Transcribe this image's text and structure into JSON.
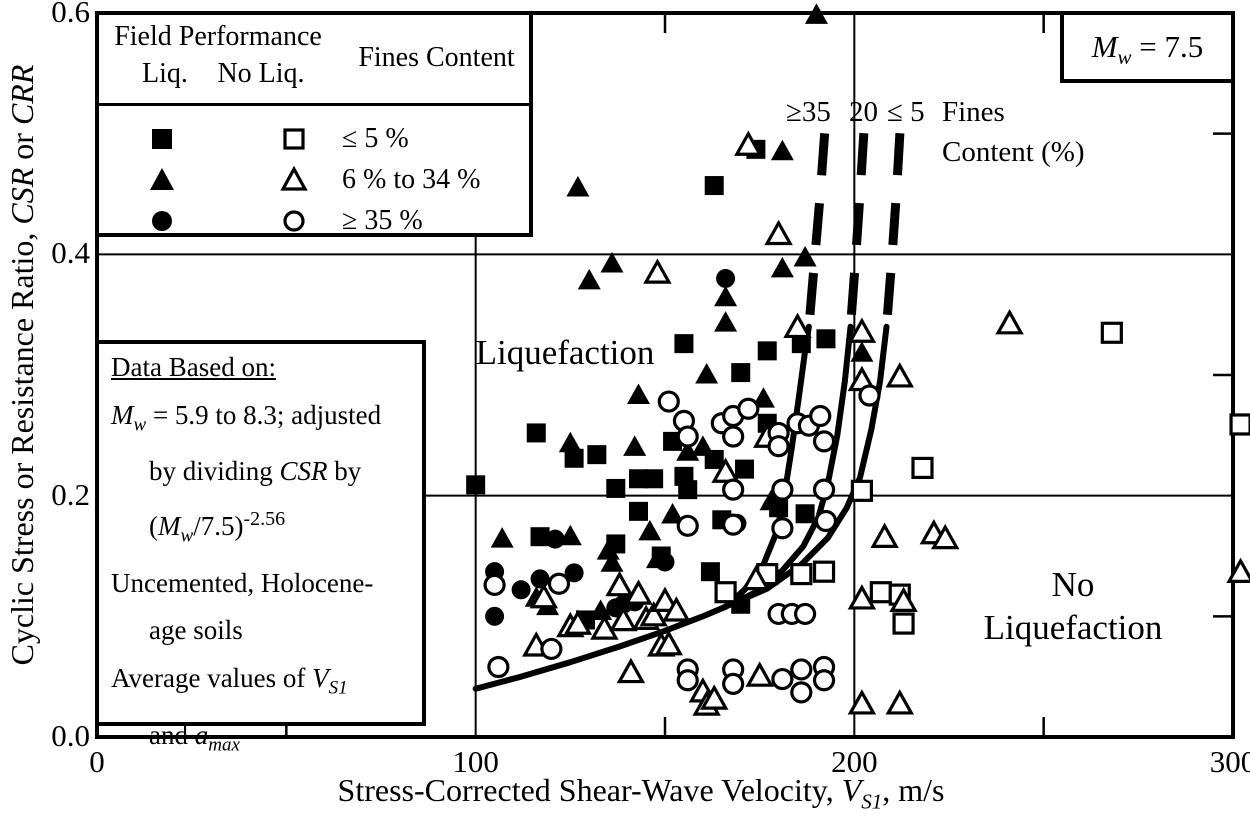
{
  "legend": {
    "header": {
      "field_performance": "Field Performance",
      "liq": "Liq.",
      "no_liq": "No Liq.",
      "fines_content": "Fines Content"
    },
    "rows": [
      {
        "liq_icon": "filled-square-icon",
        "no_liq_icon": "open-square-icon",
        "fines": "≤ 5 %"
      },
      {
        "liq_icon": "filled-triangle-icon",
        "no_liq_icon": "open-triangle-icon",
        "fines": "6 % to 34 %"
      },
      {
        "liq_icon": "filled-circle-icon",
        "no_liq_icon": "open-circle-icon",
        "fines": "≥ 35 %"
      }
    ]
  },
  "data_box": {
    "title": "Data Based on:",
    "line2": {
      "m": "M",
      "w": "w",
      "rest": " = 5.9 to 8.3; adjusted"
    },
    "line3": {
      "pre": "by dividing ",
      "csr": "CSR",
      "post": " by"
    },
    "line4": {
      "p1": "(",
      "m": "M",
      "w": "w",
      "p2": "/7.5)",
      "exp": "-2.56"
    },
    "line5": "Uncemented, Holocene-",
    "line6": "age soils",
    "line7": {
      "pre": "Average values of ",
      "v": "V",
      "sub": "S1"
    },
    "line8": {
      "pre": "and ",
      "a": "a",
      "sub": "max"
    }
  },
  "mw_box": {
    "m": "M",
    "w": "w",
    "rest": " = 7.5"
  },
  "region_labels": {
    "liquefaction": "Liquefaction",
    "no_line1": "No",
    "no_line2": "Liquefaction"
  },
  "curve_labels": {
    "ge35": "≥35",
    "c20": "20",
    "le5": "≤ 5",
    "fines_line1": "Fines",
    "fines_line2": "Content (%)"
  },
  "axes": {
    "x": {
      "title_prefix": "Stress-Corrected Shear-Wave Velocity, ",
      "title_var": "V",
      "title_sub": "S1",
      "title_suffix": ", m/s",
      "tick_values": [
        0,
        100,
        200,
        300
      ],
      "tick_labels": [
        "0",
        "100",
        "200",
        "300"
      ],
      "minor_ticks": [
        50,
        150,
        250
      ],
      "range": [
        0,
        300
      ]
    },
    "y": {
      "title_prefix": "Cyclic Stress or Resistance Ratio, ",
      "title_csr": "CSR",
      "title_mid": " or ",
      "title_crr": "CRR",
      "tick_values": [
        0,
        0.2,
        0.4,
        0.6
      ],
      "tick_labels": [
        "0.0",
        "0.2",
        "0.4",
        "0.6"
      ],
      "minor_ticks": [
        0.1,
        0.3,
        0.5
      ],
      "range": [
        0,
        0.6
      ]
    }
  },
  "chart_data": {
    "type": "scatter",
    "title": "",
    "xlabel": "Stress-Corrected Shear-Wave Velocity, VS1, m/s",
    "ylabel": "Cyclic Stress or Resistance Ratio, CSR or CRR",
    "xlim": [
      0,
      300
    ],
    "ylim": [
      0,
      0.6
    ],
    "grid": {
      "x_major": [
        100,
        200
      ],
      "y_major": [
        0.2,
        0.4
      ]
    },
    "magnitude_annotation": "Mw = 7.5",
    "series": [
      {
        "name": "liquefaction-fc-le5",
        "label": "Liq., Fines ≤ 5 %",
        "marker": "square",
        "fill": "filled",
        "points": [
          [
            100,
            0.209
          ],
          [
            116,
            0.252
          ],
          [
            117,
            0.166
          ],
          [
            126,
            0.231
          ],
          [
            129,
            0.097
          ],
          [
            132,
            0.234
          ],
          [
            137,
            0.16
          ],
          [
            137,
            0.206
          ],
          [
            143,
            0.187
          ],
          [
            143,
            0.214
          ],
          [
            147,
            0.214
          ],
          [
            149,
            0.15
          ],
          [
            152,
            0.245
          ],
          [
            155,
            0.216
          ],
          [
            155,
            0.326
          ],
          [
            156,
            0.205
          ],
          [
            162,
            0.137
          ],
          [
            163,
            0.23
          ],
          [
            163,
            0.457
          ],
          [
            165,
            0.18
          ],
          [
            170,
            0.11
          ],
          [
            170,
            0.302
          ],
          [
            171,
            0.222
          ],
          [
            174,
            0.487
          ],
          [
            177,
            0.26
          ],
          [
            177,
            0.32
          ],
          [
            180,
            0.19
          ],
          [
            186,
            0.326
          ],
          [
            187,
            0.185
          ],
          [
            192.5,
            0.33
          ]
        ]
      },
      {
        "name": "liquefaction-fc-6-34",
        "label": "Liq., Fines 6 % to 34 %",
        "marker": "triangle",
        "fill": "filled",
        "points": [
          [
            107,
            0.164
          ],
          [
            116,
            0.115
          ],
          [
            119,
            0.108
          ],
          [
            125,
            0.166
          ],
          [
            125,
            0.243
          ],
          [
            127,
            0.455
          ],
          [
            130,
            0.378
          ],
          [
            133,
            0.104
          ],
          [
            135,
            0.154
          ],
          [
            136,
            0.144
          ],
          [
            136,
            0.392
          ],
          [
            142,
            0.24
          ],
          [
            143,
            0.283
          ],
          [
            146,
            0.17
          ],
          [
            148,
            0.147
          ],
          [
            152,
            0.184
          ],
          [
            156,
            0.236
          ],
          [
            160,
            0.24
          ],
          [
            161,
            0.3
          ],
          [
            166,
            0.343
          ],
          [
            166,
            0.364
          ],
          [
            176,
            0.28
          ],
          [
            178,
            0.195
          ],
          [
            181,
            0.388
          ],
          [
            181,
            0.485
          ],
          [
            187,
            0.397
          ],
          [
            190,
            0.598
          ],
          [
            202,
            0.318
          ]
        ]
      },
      {
        "name": "liquefaction-fc-ge35",
        "label": "Liq., Fines ≥ 35 %",
        "marker": "circle",
        "fill": "filled",
        "points": [
          [
            105,
            0.1
          ],
          [
            105,
            0.137
          ],
          [
            112,
            0.122
          ],
          [
            117,
            0.131
          ],
          [
            121,
            0.164
          ],
          [
            126,
            0.136
          ],
          [
            137,
            0.107
          ],
          [
            139,
            0.11
          ],
          [
            142,
            0.112
          ],
          [
            150,
            0.145
          ],
          [
            166,
            0.38
          ],
          [
            169,
            0.177
          ]
        ]
      },
      {
        "name": "no-liquefaction-fc-le5",
        "label": "No Liq., Fines ≤ 5 %",
        "marker": "square",
        "fill": "open",
        "points": [
          [
            166,
            0.12
          ],
          [
            177,
            0.135
          ],
          [
            186,
            0.135
          ],
          [
            192,
            0.137
          ],
          [
            202,
            0.204
          ],
          [
            207,
            0.12
          ],
          [
            212,
            0.118
          ],
          [
            213,
            0.094
          ],
          [
            218,
            0.223
          ],
          [
            268,
            0.335
          ],
          [
            302,
            0.259
          ]
        ]
      },
      {
        "name": "no-liquefaction-fc-6-34",
        "label": "No Liq., Fines 6 % to 34 %",
        "marker": "triangle",
        "fill": "open",
        "points": [
          [
            116,
            0.075
          ],
          [
            118,
            0.115
          ],
          [
            125,
            0.091
          ],
          [
            127,
            0.093
          ],
          [
            134,
            0.089
          ],
          [
            138,
            0.125
          ],
          [
            139,
            0.096
          ],
          [
            141,
            0.053
          ],
          [
            143,
            0.118
          ],
          [
            145,
            0.097
          ],
          [
            147,
            0.1
          ],
          [
            148,
            0.384
          ],
          [
            149,
            0.075
          ],
          [
            150,
            0.112
          ],
          [
            151,
            0.076
          ],
          [
            153,
            0.104
          ],
          [
            160,
            0.037
          ],
          [
            161,
            0.026
          ],
          [
            163,
            0.031
          ],
          [
            166,
            0.219
          ],
          [
            172,
            0.49
          ],
          [
            174,
            0.13
          ],
          [
            175,
            0.05
          ],
          [
            177,
            0.248
          ],
          [
            180,
            0.416
          ],
          [
            185,
            0.339
          ],
          [
            202,
            0.027
          ],
          [
            202,
            0.114
          ],
          [
            202,
            0.295
          ],
          [
            202,
            0.335
          ],
          [
            208,
            0.165
          ],
          [
            212,
            0.027
          ],
          [
            212,
            0.298
          ],
          [
            213,
            0.112
          ],
          [
            221,
            0.168
          ],
          [
            224,
            0.164
          ],
          [
            241,
            0.342
          ],
          [
            302,
            0.136
          ]
        ]
      },
      {
        "name": "no-liquefaction-fc-ge35",
        "label": "No Liq., Fines ≥ 35 %",
        "marker": "circle",
        "fill": "open",
        "points": [
          [
            105,
            0.126
          ],
          [
            106,
            0.058
          ],
          [
            120,
            0.073
          ],
          [
            122,
            0.127
          ],
          [
            151,
            0.278
          ],
          [
            155,
            0.262
          ],
          [
            156,
            0.249
          ],
          [
            156,
            0.175
          ],
          [
            156,
            0.056
          ],
          [
            156,
            0.047
          ],
          [
            165,
            0.26
          ],
          [
            168,
            0.266
          ],
          [
            168,
            0.249
          ],
          [
            168,
            0.205
          ],
          [
            168,
            0.176
          ],
          [
            168,
            0.056
          ],
          [
            168,
            0.044
          ],
          [
            172,
            0.272
          ],
          [
            180,
            0.252
          ],
          [
            180,
            0.241
          ],
          [
            180,
            0.102
          ],
          [
            181,
            0.205
          ],
          [
            181,
            0.173
          ],
          [
            181,
            0.048
          ],
          [
            183.5,
            0.102
          ],
          [
            185,
            0.26
          ],
          [
            186,
            0.056
          ],
          [
            186,
            0.037
          ],
          [
            187,
            0.102
          ],
          [
            188,
            0.258
          ],
          [
            191,
            0.266
          ],
          [
            192,
            0.245
          ],
          [
            192,
            0.205
          ],
          [
            192.5,
            0.179
          ],
          [
            192,
            0.058
          ],
          [
            192,
            0.047
          ],
          [
            204,
            0.283
          ]
        ]
      }
    ],
    "curves": {
      "description": "CRR curves for Mw 7.5; dashed above CSR ~0.34; labels are fines content (%)",
      "tail": [
        [
          100,
          0.04
        ],
        [
          112,
          0.05
        ],
        [
          125,
          0.062
        ],
        [
          138,
          0.075
        ],
        [
          150,
          0.088
        ],
        [
          160,
          0.1
        ],
        [
          166,
          0.108
        ]
      ],
      "branches": [
        {
          "label": "≥35",
          "solid": [
            [
              166,
              0.108
            ],
            [
              171,
              0.122
            ],
            [
              176,
              0.143
            ],
            [
              179.5,
              0.17
            ],
            [
              181.5,
              0.2
            ],
            [
              183.5,
              0.24
            ],
            [
              185.5,
              0.285
            ],
            [
              187,
              0.32
            ],
            [
              188,
              0.34
            ]
          ],
          "dashed": [
            [
              188,
              0.34
            ],
            [
              189.5,
              0.395
            ],
            [
              191,
              0.45
            ],
            [
              192.5,
              0.515
            ]
          ]
        },
        {
          "label": "20",
          "solid": [
            [
              166,
              0.108
            ],
            [
              174,
              0.12
            ],
            [
              181,
              0.138
            ],
            [
              186.5,
              0.158
            ],
            [
              190.5,
              0.182
            ],
            [
              193,
              0.21
            ],
            [
              195.5,
              0.25
            ],
            [
              197.5,
              0.295
            ],
            [
              199,
              0.34
            ]
          ],
          "dashed": [
            [
              199,
              0.34
            ],
            [
              200.3,
              0.395
            ],
            [
              201.5,
              0.45
            ],
            [
              202.8,
              0.515
            ]
          ]
        },
        {
          "label": "≤ 5",
          "solid": [
            [
              166,
              0.108
            ],
            [
              177,
              0.123
            ],
            [
              186,
              0.143
            ],
            [
              193,
              0.165
            ],
            [
              198,
              0.19
            ],
            [
              201.5,
              0.215
            ],
            [
              204.5,
              0.255
            ],
            [
              206.8,
              0.295
            ],
            [
              208.5,
              0.34
            ]
          ],
          "dashed": [
            [
              208.5,
              0.34
            ],
            [
              210,
              0.4
            ],
            [
              211.2,
              0.455
            ],
            [
              212.3,
              0.515
            ]
          ]
        }
      ]
    }
  }
}
